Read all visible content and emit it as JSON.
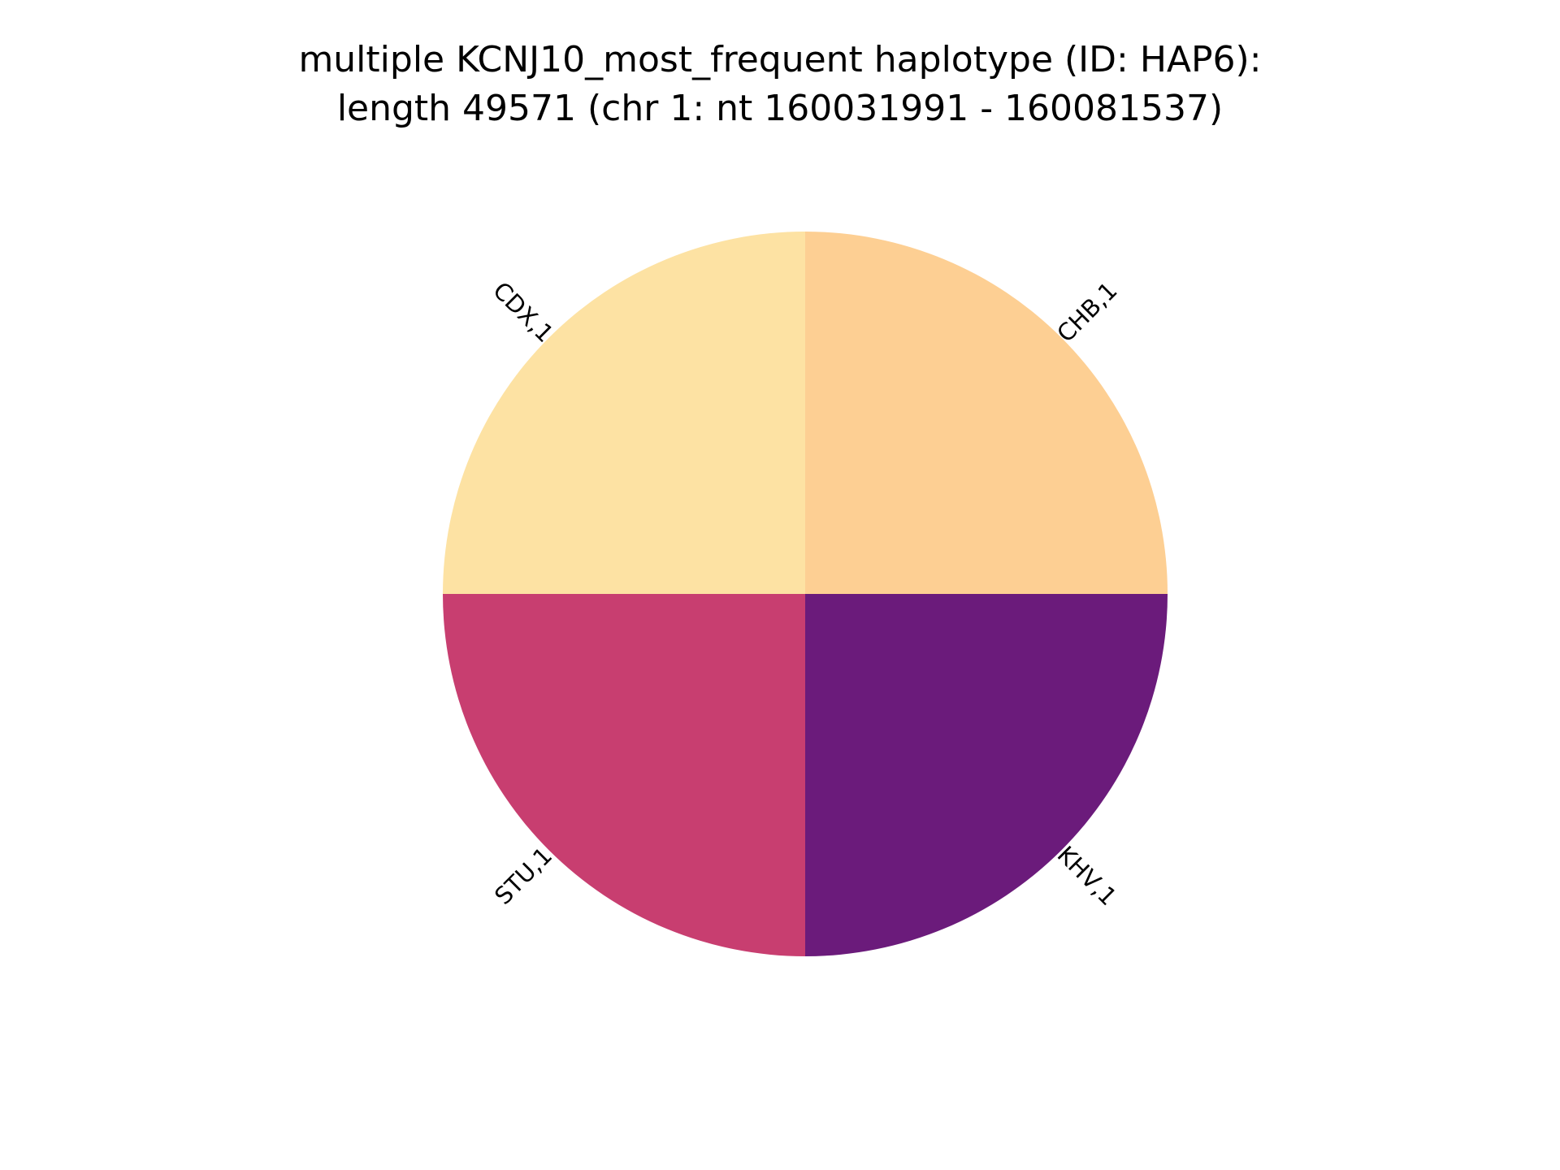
{
  "chart_data": {
    "type": "pie",
    "title": [
      "multiple KCNJ10_most_frequent haplotype (ID: HAP6):",
      "length 49571 (chr 1: nt 160031991 - 160081537)"
    ],
    "slices": [
      {
        "category": "CDX",
        "value": 1,
        "label": "CDX,1",
        "color": "#fde2a3"
      },
      {
        "category": "STU",
        "value": 1,
        "label": "STU,1",
        "color": "#c83e70"
      },
      {
        "category": "KHV",
        "value": 1,
        "label": "KHV,1",
        "color": "#6b1b7b"
      },
      {
        "category": "CHB",
        "value": 1,
        "label": "CHB,1",
        "color": "#fdcf93"
      }
    ],
    "start_angle_deg": 90,
    "direction": "counterclockwise",
    "legend": "none"
  }
}
